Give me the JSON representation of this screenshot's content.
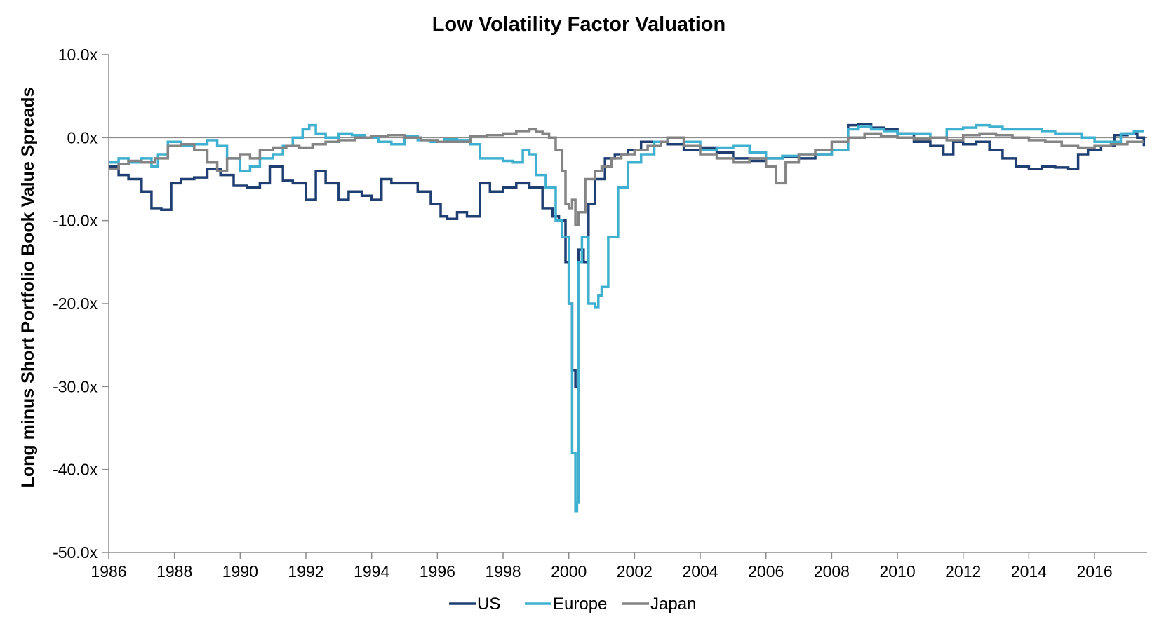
{
  "chart_data": {
    "type": "line",
    "title": "Low Volatility Factor Valuation",
    "xlabel": "",
    "ylabel": "Long minus Short Portfolio Book Value Spreads",
    "xlim": [
      1986,
      2017.6
    ],
    "ylim": [
      -50,
      10
    ],
    "y_tick_values": [
      10,
      0,
      -10,
      -20,
      -30,
      -40,
      -50
    ],
    "y_tick_labels": [
      "10.0x",
      "0.0x",
      "-10.0x",
      "-20.0x",
      "-30.0x",
      "-40.0x",
      "-50.0x"
    ],
    "x_tick_values": [
      1986,
      1988,
      1990,
      1992,
      1994,
      1996,
      1998,
      2000,
      2002,
      2004,
      2006,
      2008,
      2010,
      2012,
      2014,
      2016
    ],
    "x_tick_labels": [
      "1986",
      "1988",
      "1990",
      "1992",
      "1994",
      "1996",
      "1998",
      "2000",
      "2002",
      "2004",
      "2006",
      "2008",
      "2010",
      "2012",
      "2014",
      "2016"
    ],
    "grid": false,
    "zero_line": true,
    "legend_position": "bottom",
    "series": [
      {
        "name": "US",
        "color": "#1f3f73",
        "x": [
          1986.0,
          1986.3,
          1986.6,
          1987.0,
          1987.3,
          1987.6,
          1987.9,
          1988.2,
          1988.6,
          1989.0,
          1989.4,
          1989.8,
          1990.2,
          1990.6,
          1990.9,
          1991.3,
          1991.6,
          1992.0,
          1992.3,
          1992.6,
          1993.0,
          1993.3,
          1993.7,
          1994.0,
          1994.3,
          1994.6,
          1995.0,
          1995.4,
          1995.8,
          1996.1,
          1996.3,
          1996.6,
          1996.9,
          1997.3,
          1997.6,
          1998.0,
          1998.4,
          1998.8,
          1999.2,
          1999.5,
          1999.7,
          1999.9,
          2000.0,
          2000.1,
          2000.2,
          2000.3,
          2000.45,
          2000.6,
          2000.8,
          2001.1,
          2001.4,
          2001.8,
          2002.2,
          2002.6,
          2003.0,
          2003.5,
          2004.0,
          2004.5,
          2005.0,
          2005.5,
          2006.0,
          2006.5,
          2007.0,
          2007.5,
          2008.0,
          2008.5,
          2008.8,
          2009.2,
          2009.6,
          2010.0,
          2010.5,
          2011.0,
          2011.4,
          2011.7,
          2012.0,
          2012.4,
          2012.8,
          2013.2,
          2013.6,
          2014.0,
          2014.4,
          2014.8,
          2015.2,
          2015.5,
          2015.8,
          2016.2,
          2016.6,
          2017.0,
          2017.3,
          2017.5
        ],
        "values": [
          -3.5,
          -4.5,
          -5.0,
          -6.5,
          -8.5,
          -8.7,
          -5.5,
          -5.0,
          -4.8,
          -3.8,
          -4.5,
          -5.8,
          -6.0,
          -5.5,
          -3.5,
          -5.2,
          -5.5,
          -7.5,
          -4.0,
          -5.5,
          -7.5,
          -6.5,
          -7.0,
          -7.5,
          -5.0,
          -5.5,
          -5.5,
          -6.5,
          -8.0,
          -9.5,
          -9.8,
          -9.0,
          -9.5,
          -5.5,
          -6.5,
          -6.0,
          -5.5,
          -6.0,
          -8.5,
          -9.5,
          -10.0,
          -15.0,
          -20.0,
          -28.0,
          -30.0,
          -13.5,
          -15.0,
          -8.0,
          -5.0,
          -2.5,
          -2.0,
          -1.5,
          -0.5,
          -0.5,
          -0.8,
          -1.5,
          -1.2,
          -1.8,
          -2.5,
          -2.8,
          -2.5,
          -2.3,
          -2.5,
          -2.0,
          -1.5,
          1.5,
          1.6,
          1.2,
          1.0,
          0.5,
          -0.5,
          -1.0,
          -2.0,
          -0.5,
          -0.8,
          -0.5,
          -1.5,
          -2.5,
          -3.5,
          -3.8,
          -3.5,
          -3.6,
          -3.8,
          -2.0,
          -1.5,
          -1.0,
          0.3,
          0.5,
          0.0,
          -1.0
        ]
      },
      {
        "name": "Europe",
        "color": "#3fb0cf",
        "x": [
          1986.0,
          1986.3,
          1986.6,
          1987.0,
          1987.3,
          1987.5,
          1987.8,
          1988.2,
          1988.6,
          1989.0,
          1989.3,
          1989.6,
          1990.0,
          1990.3,
          1990.6,
          1991.0,
          1991.3,
          1991.6,
          1991.9,
          1992.1,
          1992.3,
          1992.6,
          1993.0,
          1993.4,
          1993.8,
          1994.2,
          1994.6,
          1995.0,
          1995.4,
          1995.8,
          1996.2,
          1996.6,
          1997.0,
          1997.3,
          1997.6,
          1998.0,
          1998.3,
          1998.6,
          1998.8,
          1999.0,
          1999.3,
          1999.6,
          1999.8,
          2000.0,
          2000.1,
          2000.2,
          2000.25,
          2000.3,
          2000.4,
          2000.6,
          2000.8,
          2000.9,
          2001.0,
          2001.2,
          2001.5,
          2001.8,
          2002.2,
          2002.6,
          2003.0,
          2003.5,
          2004.0,
          2004.5,
          2005.0,
          2005.5,
          2006.0,
          2006.5,
          2007.0,
          2007.5,
          2008.0,
          2008.5,
          2008.8,
          2009.2,
          2009.6,
          2010.0,
          2010.5,
          2011.0,
          2011.5,
          2012.0,
          2012.4,
          2012.8,
          2013.2,
          2013.6,
          2014.0,
          2014.4,
          2014.8,
          2015.2,
          2015.6,
          2016.0,
          2016.4,
          2016.8,
          2017.2,
          2017.5
        ],
        "values": [
          -3.0,
          -2.5,
          -3.0,
          -2.5,
          -3.5,
          -2.0,
          -0.5,
          -1.0,
          -0.8,
          -0.3,
          -1.0,
          -2.5,
          -4.0,
          -3.5,
          -2.5,
          -2.0,
          -1.0,
          0.0,
          1.0,
          1.5,
          0.5,
          0.0,
          0.5,
          0.3,
          0.0,
          -0.5,
          -0.8,
          0.2,
          -0.3,
          -0.5,
          -0.2,
          -0.3,
          -0.8,
          -2.5,
          -2.5,
          -2.8,
          -3.0,
          -1.5,
          -2.0,
          -4.5,
          -6.0,
          -10.0,
          -12.0,
          -20.0,
          -38.0,
          -45.0,
          -44.0,
          -15.0,
          -12.0,
          -20.0,
          -20.5,
          -19.0,
          -18.0,
          -12.0,
          -6.0,
          -3.0,
          -2.0,
          -0.5,
          0.0,
          -0.5,
          -1.5,
          -1.2,
          -1.0,
          -1.8,
          -2.5,
          -2.2,
          -2.0,
          -2.0,
          -1.5,
          1.0,
          1.3,
          1.0,
          0.8,
          0.5,
          0.5,
          0.0,
          1.0,
          1.2,
          1.5,
          1.3,
          1.0,
          1.0,
          1.0,
          0.8,
          0.5,
          0.5,
          0.0,
          -0.5,
          -0.5,
          0.5,
          0.8,
          0.8
        ]
      },
      {
        "name": "Japan",
        "color": "#848484",
        "x": [
          1986.0,
          1986.3,
          1986.6,
          1987.0,
          1987.4,
          1987.8,
          1988.2,
          1988.6,
          1989.0,
          1989.3,
          1989.6,
          1990.0,
          1990.3,
          1990.6,
          1991.0,
          1991.4,
          1991.8,
          1992.2,
          1992.6,
          1993.0,
          1993.5,
          1994.0,
          1994.5,
          1995.0,
          1995.5,
          1996.0,
          1996.5,
          1997.0,
          1997.5,
          1998.0,
          1998.4,
          1998.8,
          1999.0,
          1999.2,
          1999.4,
          1999.6,
          1999.8,
          1999.9,
          2000.0,
          2000.1,
          2000.2,
          2000.3,
          2000.5,
          2000.8,
          2001.0,
          2001.3,
          2001.6,
          2002.0,
          2002.4,
          2002.8,
          2003.0,
          2003.5,
          2004.0,
          2004.5,
          2005.0,
          2005.5,
          2006.0,
          2006.3,
          2006.6,
          2007.0,
          2007.5,
          2008.0,
          2008.5,
          2009.0,
          2009.5,
          2010.0,
          2010.5,
          2011.0,
          2011.5,
          2012.0,
          2012.5,
          2013.0,
          2013.5,
          2014.0,
          2014.5,
          2015.0,
          2015.5,
          2016.0,
          2016.5,
          2017.0,
          2017.5
        ],
        "values": [
          -3.8,
          -3.2,
          -2.8,
          -3.0,
          -2.5,
          -1.0,
          -0.8,
          -1.5,
          -3.0,
          -4.0,
          -2.5,
          -2.0,
          -2.5,
          -1.5,
          -1.2,
          -1.0,
          -1.2,
          -0.8,
          -0.5,
          -0.3,
          0.0,
          0.2,
          0.3,
          0.0,
          -0.3,
          -0.5,
          -0.5,
          0.2,
          0.3,
          0.5,
          0.8,
          1.0,
          0.7,
          0.5,
          0.0,
          -1.5,
          -4.0,
          -8.0,
          -8.5,
          -7.5,
          -10.5,
          -9.0,
          -5.0,
          -4.0,
          -3.5,
          -2.5,
          -2.0,
          -1.5,
          -1.0,
          -0.5,
          0.0,
          -1.0,
          -2.0,
          -2.5,
          -3.0,
          -2.5,
          -3.5,
          -5.5,
          -3.0,
          -2.0,
          -1.5,
          -0.5,
          0.0,
          0.5,
          0.2,
          0.0,
          -0.2,
          0.0,
          -0.3,
          0.3,
          0.5,
          0.3,
          0.0,
          -0.3,
          -0.5,
          -1.0,
          -1.2,
          -1.0,
          -0.8,
          -0.5,
          -0.5
        ]
      }
    ]
  }
}
